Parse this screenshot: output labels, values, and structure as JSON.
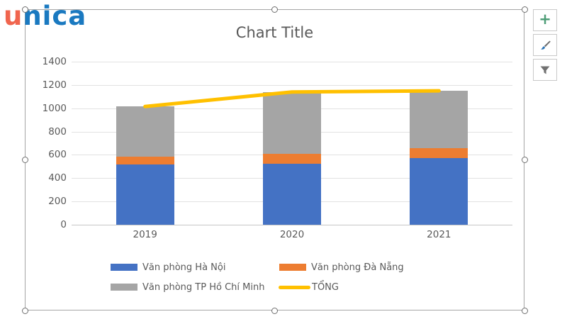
{
  "logo": {
    "part1": "u",
    "part2": "nica"
  },
  "chart_data": {
    "type": "bar",
    "subtype": "stacked-column-with-total-line",
    "title": "Chart Title",
    "categories": [
      "2019",
      "2020",
      "2021"
    ],
    "series": [
      {
        "name": "Văn phòng Hà Nội",
        "kind": "bar",
        "color": "#4472C4",
        "values": [
          515,
          525,
          575
        ]
      },
      {
        "name": "Văn phòng Đà Nẵng",
        "kind": "bar",
        "color": "#ED7D31",
        "values": [
          70,
          85,
          80
        ]
      },
      {
        "name": "Văn phòng TP Hồ Chí Minh",
        "kind": "bar",
        "color": "#A5A5A5",
        "values": [
          430,
          530,
          495
        ]
      },
      {
        "name": "TỔNG",
        "kind": "line",
        "color": "#FFC000",
        "values": [
          1015,
          1140,
          1150
        ]
      }
    ],
    "ylim": [
      0,
      1400
    ],
    "ytick_step": 200,
    "grid": true,
    "legend_position": "bottom"
  },
  "chart_buttons": [
    {
      "name": "chart-elements-button",
      "icon": "plus-icon"
    },
    {
      "name": "chart-styles-button",
      "icon": "paintbrush-icon"
    },
    {
      "name": "chart-filters-button",
      "icon": "funnel-icon"
    }
  ],
  "colors": {
    "grid": "#E2E2E2",
    "axis_line": "#C6C6C6",
    "text": "#595959",
    "frame_border": "#A6A6A6",
    "logo_orange": "#F0654E",
    "logo_blue": "#1A79C0",
    "total_line": "#FFC000",
    "plus_green": "#4E9D77",
    "brush_blue": "#2E75B6",
    "funnel_gray": "#717171"
  }
}
